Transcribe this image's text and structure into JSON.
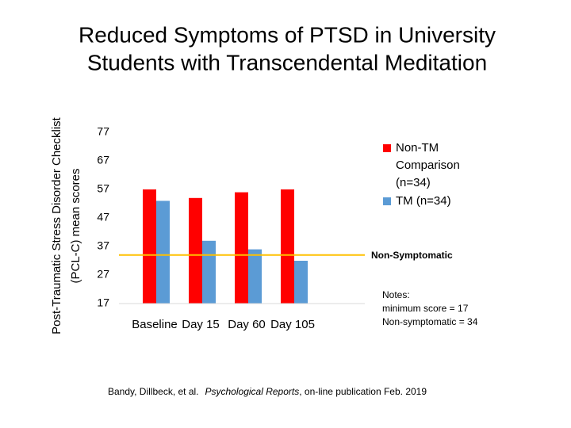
{
  "chart_data": {
    "type": "bar",
    "title": [
      "Reduced Symptoms of PTSD in University",
      "Students with Transcendental Meditation"
    ],
    "y_label": [
      "Post-Traumatic Stress Disorder Checklist",
      "(PCL-C)  mean scores"
    ],
    "categories": [
      "Baseline",
      "Day 15",
      "Day 60",
      "Day 105"
    ],
    "series": [
      {
        "name": "Non-TM Comparison (n=34)",
        "color": "#ff0000",
        "values": [
          57,
          54,
          56,
          57
        ]
      },
      {
        "name": "TM  (n=34)",
        "color": "#5b9bd5",
        "values": [
          53,
          39,
          36,
          32
        ]
      }
    ],
    "ylim": [
      17,
      77
    ],
    "yticks": [
      17,
      27,
      37,
      47,
      57,
      67,
      77
    ],
    "grid": false,
    "reference_line": {
      "value": 34,
      "label": "Non-Symptomatic",
      "color": "#ffc000"
    },
    "legend": "right",
    "notes": [
      "Notes:",
      "minimum score =  17",
      "Non-symptomatic = 34"
    ],
    "source": {
      "authors": "Bandy, Dillbeck, et al.",
      "journal": "Psychological Reports",
      "rest": ", on-line publication Feb. 2019"
    }
  }
}
